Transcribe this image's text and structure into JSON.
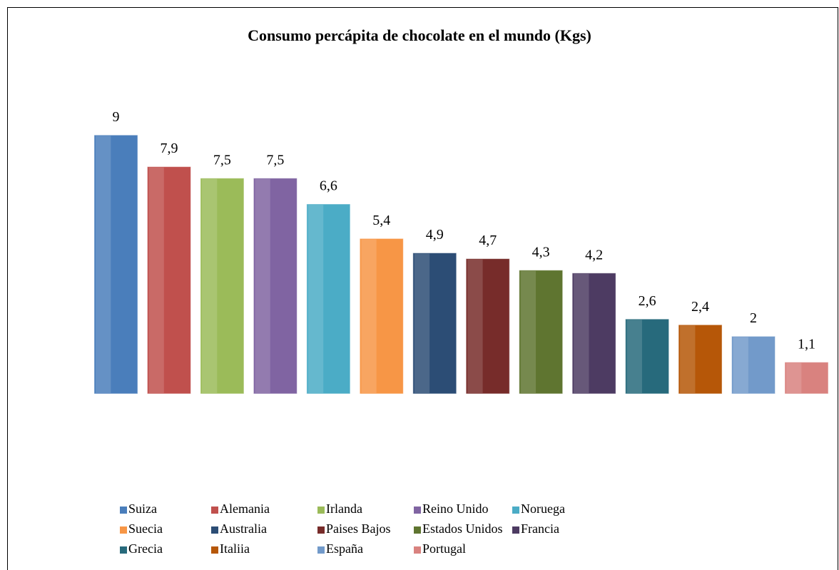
{
  "chart_data": {
    "type": "bar",
    "title": "Consumo percápita de chocolate en el mundo (Kgs)",
    "series": [
      {
        "name": "Suiza",
        "color": "#4a7ebb",
        "values": [
          9
        ],
        "value_labels": [
          "9"
        ]
      },
      {
        "name": "Alemania",
        "color": "#c0504d",
        "values": [
          7.9
        ],
        "value_labels": [
          "7,9"
        ]
      },
      {
        "name": "Irlanda",
        "color": "#9bbb59",
        "values": [
          7.5
        ],
        "value_labels": [
          "7,5"
        ]
      },
      {
        "name": "Reino Unido",
        "color": "#8064a2",
        "values": [
          7.5
        ],
        "value_labels": [
          "7,5"
        ]
      },
      {
        "name": "Noruega",
        "color": "#4bacc6",
        "values": [
          6.6
        ],
        "value_labels": [
          "6,6"
        ]
      },
      {
        "name": "Suecia",
        "color": "#f79646",
        "values": [
          5.4
        ],
        "value_labels": [
          "5,4"
        ]
      },
      {
        "name": "Australia",
        "color": "#2c4d75",
        "values": [
          4.9
        ],
        "value_labels": [
          "4,9"
        ]
      },
      {
        "name": "Paises Bajos",
        "color": "#772c2a",
        "values": [
          4.7
        ],
        "value_labels": [
          "4,7"
        ]
      },
      {
        "name": "Estados Unidos",
        "color": "#5f7530",
        "values": [
          4.3
        ],
        "value_labels": [
          "4,3"
        ]
      },
      {
        "name": "Francia",
        "color": "#4d3b62",
        "values": [
          4.2
        ],
        "value_labels": [
          "4,2"
        ]
      },
      {
        "name": "Grecia",
        "color": "#276a7c",
        "values": [
          2.6
        ],
        "value_labels": [
          "2,6"
        ]
      },
      {
        "name": "Italiia",
        "color": "#b65708",
        "values": [
          2.4
        ],
        "value_labels": [
          "2,4"
        ]
      },
      {
        "name": "España",
        "color": "#729aca",
        "values": [
          2
        ],
        "value_labels": [
          "2"
        ]
      },
      {
        "name": "Portugal",
        "color": "#d9827f",
        "values": [
          1.1
        ],
        "value_labels": [
          "1,1"
        ]
      }
    ]
  }
}
